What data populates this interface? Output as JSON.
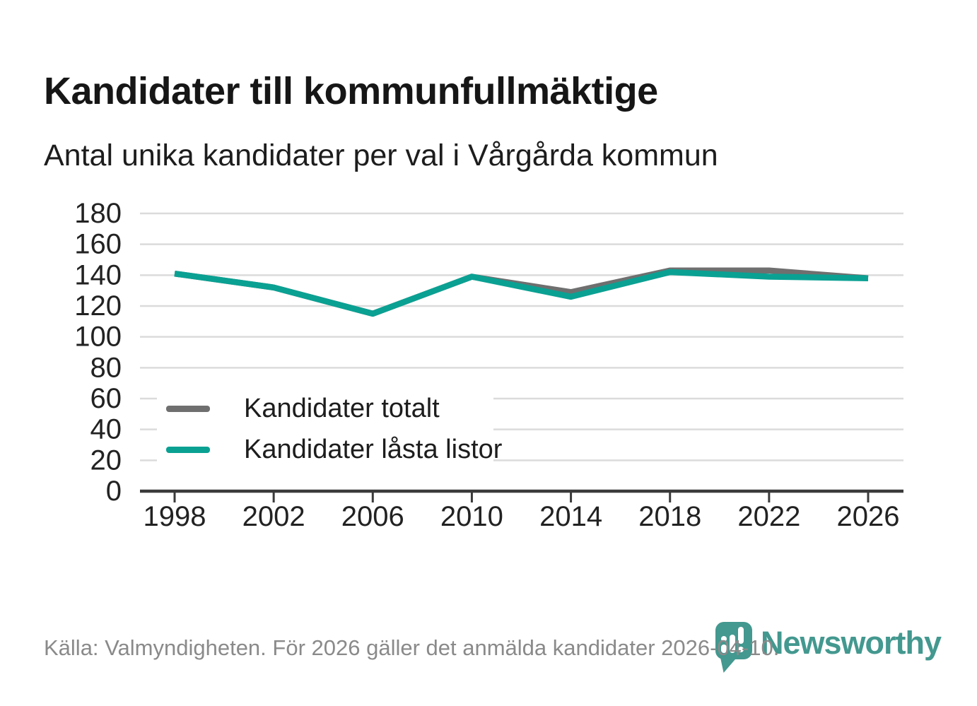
{
  "title": "Kandidater till kommunfullmäktige",
  "subtitle": "Antal unika kandidater per val i Vårgårda kommun",
  "source": "Källa: Valmyndigheten. För 2026 gäller det anmälda kandidater 2026-04-10.",
  "logo": {
    "wordmark": "Newsworthy",
    "icon": "bar-chart-pin-icon",
    "teal": "#43988F"
  },
  "colors": {
    "totalt": "#6F6F6F",
    "lasta": "#0AA193",
    "grid": "#DBDBDB",
    "axis": "#3A3A3A",
    "tick_label": "#222222"
  },
  "legend": {
    "items": [
      {
        "label": "Kandidater totalt",
        "color_key": "totalt"
      },
      {
        "label": "Kandidater låsta listor",
        "color_key": "lasta"
      }
    ]
  },
  "chart_data": {
    "type": "line",
    "title": "Kandidater till kommunfullmäktige",
    "subtitle": "Antal unika kandidater per val i Vårgårda kommun",
    "categories": [
      "1998",
      "2002",
      "2006",
      "2010",
      "2014",
      "2018",
      "2022",
      "2026"
    ],
    "series": [
      {
        "name": "Kandidater totalt",
        "color": "#6F6F6F",
        "values": [
          141,
          132,
          115,
          139,
          129,
          143,
          143,
          138
        ]
      },
      {
        "name": "Kandidater låsta listor",
        "color": "#0AA193",
        "values": [
          141,
          132,
          115,
          139,
          126,
          142,
          139,
          138
        ]
      }
    ],
    "xlabel": "",
    "ylabel": "",
    "ylim": [
      0,
      180
    ],
    "yticks": [
      0,
      20,
      40,
      60,
      80,
      100,
      120,
      140,
      160,
      180
    ],
    "grid": true,
    "legend_position": "inside-bottom-left"
  }
}
